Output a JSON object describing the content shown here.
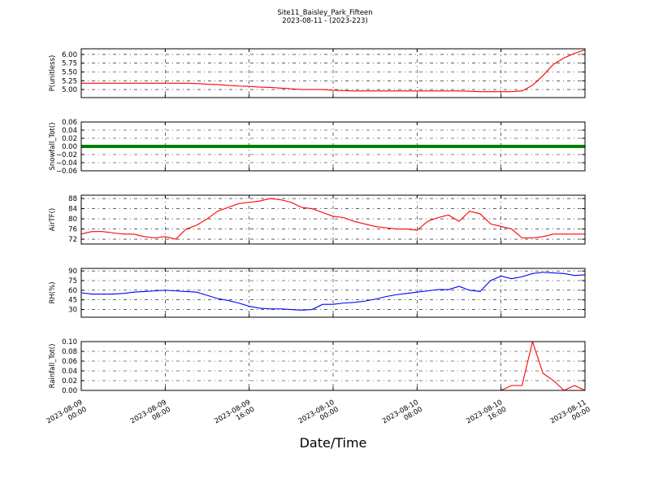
{
  "chart_data": [
    {
      "type": "line",
      "title": "Site11_Baisley_Park_Fifteen",
      "subtitle": "2023-08-11 - (2023-223)",
      "ylabel": "P(unitless)",
      "x": [
        "2023-08-09 00:00",
        "2023-08-09 01:00",
        "2023-08-09 02:00",
        "2023-08-09 03:00",
        "2023-08-09 04:00",
        "2023-08-09 05:00",
        "2023-08-09 06:00",
        "2023-08-09 07:00",
        "2023-08-09 08:00",
        "2023-08-09 09:00",
        "2023-08-09 10:00",
        "2023-08-09 11:00",
        "2023-08-09 12:00",
        "2023-08-09 13:00",
        "2023-08-09 14:00",
        "2023-08-09 15:00",
        "2023-08-09 16:00",
        "2023-08-09 17:00",
        "2023-08-09 18:00",
        "2023-08-09 19:00",
        "2023-08-09 20:00",
        "2023-08-09 21:00",
        "2023-08-09 22:00",
        "2023-08-09 23:00",
        "2023-08-10 00:00",
        "2023-08-10 01:00",
        "2023-08-10 02:00",
        "2023-08-10 03:00",
        "2023-08-10 04:00",
        "2023-08-10 05:00",
        "2023-08-10 06:00",
        "2023-08-10 07:00",
        "2023-08-10 08:00",
        "2023-08-10 09:00",
        "2023-08-10 10:00",
        "2023-08-10 11:00",
        "2023-08-10 12:00",
        "2023-08-10 13:00",
        "2023-08-10 14:00",
        "2023-08-10 15:00",
        "2023-08-10 16:00",
        "2023-08-10 17:00",
        "2023-08-10 18:00",
        "2023-08-10 19:00",
        "2023-08-10 20:00",
        "2023-08-10 21:00",
        "2023-08-10 22:00",
        "2023-08-10 23:00",
        "2023-08-11 00:00"
      ],
      "xlim": [
        "2023-08-09 00:00",
        "2023-08-11 00:00"
      ],
      "ylim": [
        4.77,
        6.16
      ],
      "yticks": [
        {
          "value": 5.0,
          "label": "5.00"
        },
        {
          "value": 5.25,
          "label": "5.25"
        },
        {
          "value": 5.5,
          "label": "5.50"
        },
        {
          "value": 5.75,
          "label": "5.75"
        },
        {
          "value": 6.0,
          "label": "6.00"
        }
      ],
      "grid": true,
      "series": [
        {
          "color": "#ff0000",
          "values": [
            5.18,
            5.18,
            5.18,
            5.18,
            5.18,
            5.18,
            5.18,
            5.18,
            5.18,
            5.18,
            5.18,
            5.17,
            5.15,
            5.14,
            5.12,
            5.1,
            5.09,
            5.07,
            5.06,
            5.04,
            5.02,
            5.0,
            5.0,
            5.0,
            4.98,
            4.97,
            4.96,
            4.96,
            4.96,
            4.96,
            4.96,
            4.96,
            4.96,
            4.96,
            4.96,
            4.96,
            4.96,
            4.95,
            4.94,
            4.94,
            4.94,
            4.94,
            4.96,
            5.12,
            5.4,
            5.72,
            5.9,
            6.03,
            6.13
          ]
        }
      ]
    },
    {
      "type": "line",
      "ylabel": "Snowfall_Tot()",
      "ylim": [
        -0.06,
        0.06
      ],
      "yticks": [
        {
          "value": -0.06,
          "label": "−0.06"
        },
        {
          "value": -0.04,
          "label": "−0.04"
        },
        {
          "value": -0.02,
          "label": "−0.02"
        },
        {
          "value": 0,
          "label": "0.00"
        },
        {
          "value": 0.02,
          "label": "0.02"
        },
        {
          "value": 0.04,
          "label": "0.04"
        },
        {
          "value": 0.06,
          "label": "0.06"
        }
      ],
      "grid": true,
      "series": [
        {
          "color": "#008000",
          "values": [
            0,
            0,
            0,
            0,
            0,
            0,
            0,
            0,
            0,
            0,
            0,
            0,
            0,
            0,
            0,
            0,
            0,
            0,
            0,
            0,
            0,
            0,
            0,
            0,
            0,
            0,
            0,
            0,
            0,
            0,
            0,
            0,
            0,
            0,
            0,
            0,
            0,
            0,
            0,
            0,
            0,
            0,
            0,
            0,
            0,
            0,
            0,
            0,
            0
          ]
        }
      ]
    },
    {
      "type": "line",
      "ylabel": "AirTF()",
      "ylim": [
        70.1,
        89.3
      ],
      "yticks": [
        72,
        76,
        80,
        84,
        88
      ],
      "grid": true,
      "series": [
        {
          "color": "#ff0000",
          "values": [
            74,
            75,
            75,
            74.5,
            74,
            74,
            73,
            72.5,
            73,
            72,
            76,
            77.5,
            80,
            83,
            84.5,
            86,
            86.5,
            87,
            88,
            87.5,
            86.5,
            84.5,
            84,
            82.5,
            81,
            80.5,
            79,
            78,
            77,
            76.5,
            76,
            76,
            75.5,
            79,
            80.5,
            81.5,
            79,
            83,
            82,
            78,
            77,
            76,
            72.5,
            72.5,
            73,
            74,
            74,
            74,
            74
          ]
        }
      ]
    },
    {
      "type": "line",
      "ylabel": "RH(%)",
      "ylim": [
        18,
        94
      ],
      "yticks": [
        30,
        45,
        60,
        75,
        90
      ],
      "grid": true,
      "series": [
        {
          "color": "#0000ff",
          "values": [
            56,
            54,
            54,
            54,
            55,
            57,
            58,
            59,
            60,
            59,
            58,
            57,
            52,
            47,
            44,
            40,
            35,
            32,
            31,
            31,
            30,
            29,
            30,
            38,
            38,
            40,
            41,
            43,
            46,
            50,
            53,
            55,
            57,
            59,
            61,
            61,
            66,
            60,
            58,
            75,
            82,
            78,
            81,
            86,
            88,
            87,
            86,
            83,
            84
          ]
        }
      ]
    },
    {
      "type": "line",
      "ylabel": "Rainfall_Tot()",
      "xlabel": "Date/Time",
      "ylim": [
        0,
        0.1
      ],
      "yticks": [
        {
          "value": 0,
          "label": "0.00"
        },
        {
          "value": 0.02,
          "label": "0.02"
        },
        {
          "value": 0.04,
          "label": "0.04"
        },
        {
          "value": 0.06,
          "label": "0.06"
        },
        {
          "value": 0.08,
          "label": "0.08"
        },
        {
          "value": 0.1,
          "label": "0.10"
        }
      ],
      "xticks": [
        "2023-08-09 00:00",
        "2023-08-09 08:00",
        "2023-08-09 16:00",
        "2023-08-10 00:00",
        "2023-08-10 08:00",
        "2023-08-10 16:00",
        "2023-08-11 00:00"
      ],
      "grid": true,
      "series": [
        {
          "color": "#ff0000",
          "values": [
            0,
            0,
            0,
            0,
            0,
            0,
            0,
            0,
            0,
            0,
            0,
            0,
            0,
            0,
            0,
            0,
            0,
            0,
            0,
            0,
            0,
            0,
            0,
            0,
            0,
            0,
            0,
            0,
            0,
            0,
            0,
            0,
            0,
            0,
            0,
            0,
            0,
            0,
            0,
            0,
            0,
            0.01,
            0.01,
            0.1,
            0.035,
            0.02,
            0,
            0.01,
            0
          ]
        }
      ]
    }
  ]
}
